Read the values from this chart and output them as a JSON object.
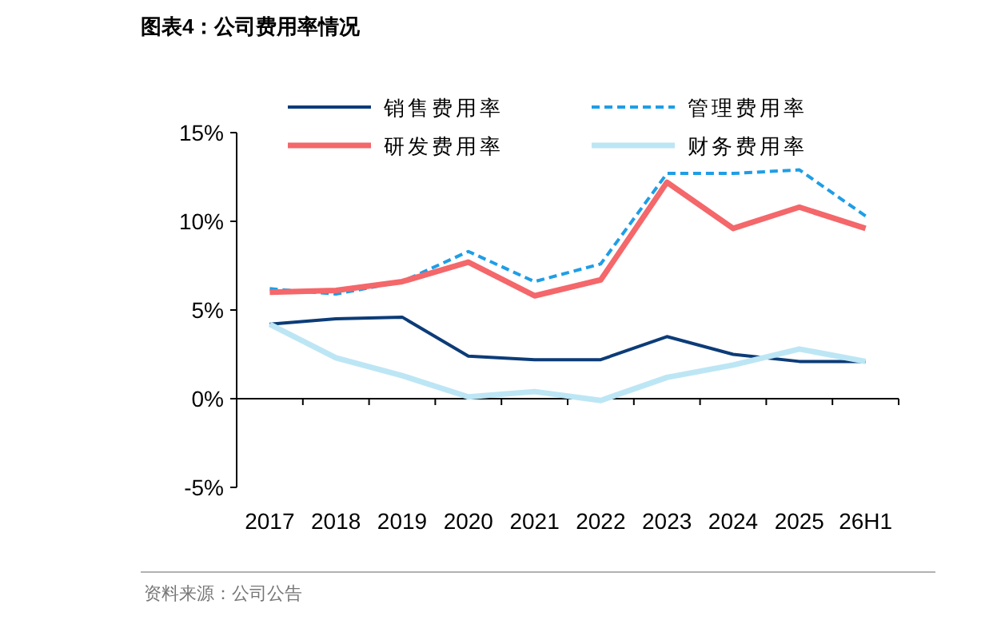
{
  "chart_data": {
    "type": "line",
    "title": "图表4：公司费用率情况",
    "categories": [
      "2017",
      "2018",
      "2019",
      "2020",
      "2021",
      "2022",
      "2023",
      "2024",
      "2025",
      "26H1"
    ],
    "series": [
      {
        "name": "销售费用率",
        "color": "#0c3c78",
        "line_style": "solid",
        "values": [
          4.2,
          4.5,
          4.6,
          2.4,
          2.2,
          2.2,
          3.5,
          2.5,
          2.1,
          2.1
        ]
      },
      {
        "name": "管理费用率",
        "color": "#1e9ee6",
        "line_style": "dashed",
        "values": [
          6.2,
          5.9,
          6.6,
          8.3,
          6.6,
          7.6,
          12.7,
          12.7,
          12.9,
          10.3
        ]
      },
      {
        "name": "研发费用率",
        "color": "#f4676a",
        "line_style": "solid",
        "values": [
          6.0,
          6.1,
          6.6,
          7.7,
          5.8,
          6.7,
          12.2,
          9.6,
          10.8,
          9.6
        ]
      },
      {
        "name": "财务费用率",
        "color": "#bde6f5",
        "line_style": "solid",
        "values": [
          4.2,
          2.3,
          1.3,
          0.1,
          0.4,
          -0.1,
          1.2,
          1.9,
          2.8,
          2.1
        ]
      }
    ],
    "ylim": [
      -5,
      15
    ],
    "yticks": [
      {
        "value": -5,
        "label": "-5%"
      },
      {
        "value": 0,
        "label": "0%"
      },
      {
        "value": 5,
        "label": "5%"
      },
      {
        "value": 10,
        "label": "10%"
      },
      {
        "value": 15,
        "label": "15%"
      }
    ],
    "legend": "top",
    "annotations": [
      "资料来源：公司公告"
    ]
  }
}
